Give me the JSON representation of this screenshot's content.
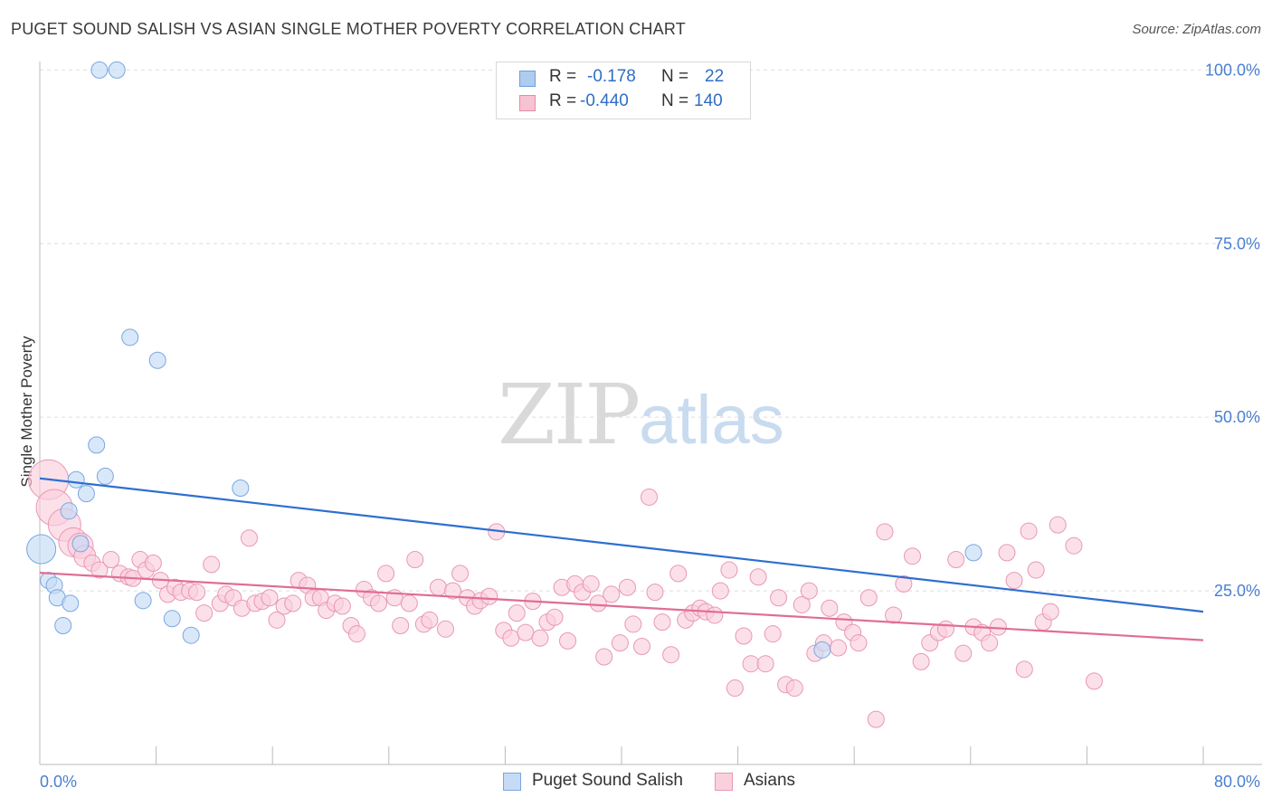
{
  "title": "PUGET SOUND SALISH VS ASIAN SINGLE MOTHER POVERTY CORRELATION CHART",
  "source": "Source: ZipAtlas.com",
  "watermark": {
    "zip": "ZIP",
    "atlas": "atlas"
  },
  "stats": [
    {
      "r_label": "R =",
      "r_value": "-0.178",
      "n_label": "N =",
      "n_value": "22",
      "color": "#aecbf0",
      "border": "#6e9fdc"
    },
    {
      "r_label": "R =",
      "r_value": "-0.440",
      "n_label": "N =",
      "n_value": "140",
      "color": "#f7c3d3",
      "border": "#e88aa8"
    }
  ],
  "legend": [
    {
      "label": "Puget Sound Salish",
      "color": "#c5dbf6",
      "border": "#7aa6e0"
    },
    {
      "label": "Asians",
      "color": "#fad0dd",
      "border": "#e898b2"
    }
  ],
  "chart_data": {
    "type": "scatter",
    "title": "PUGET SOUND SALISH VS ASIAN SINGLE MOTHER POVERTY CORRELATION CHART",
    "xlabel": "",
    "ylabel": "Single Mother Poverty",
    "xlim": [
      0,
      80
    ],
    "ylim": [
      0,
      102
    ],
    "x_tick_labels": [
      "0.0%",
      "80.0%"
    ],
    "y_ticks": [
      25,
      50,
      75,
      100
    ],
    "y_tick_labels": [
      "25.0%",
      "50.0%",
      "75.0%",
      "100.0%"
    ],
    "grid": true,
    "series": [
      {
        "name": "Puget Sound Salish",
        "color": "#7aa6e0",
        "fill": "#c5dbf6",
        "trend_color": "#2e6fd0",
        "trend": [
          [
            0,
            41.2
          ],
          [
            80,
            22.0
          ]
        ],
        "points": [
          [
            4.1,
            100
          ],
          [
            5.3,
            100
          ],
          [
            6.2,
            61.5
          ],
          [
            8.1,
            58.2
          ],
          [
            3.9,
            46.0
          ],
          [
            2.5,
            41.0
          ],
          [
            4.5,
            41.5
          ],
          [
            3.2,
            39.0
          ],
          [
            13.8,
            39.8
          ],
          [
            2.0,
            36.5
          ],
          [
            0.1,
            31.0
          ],
          [
            2.8,
            31.8
          ],
          [
            0.6,
            26.5
          ],
          [
            1.0,
            25.8
          ],
          [
            1.2,
            24.0
          ],
          [
            2.1,
            23.2
          ],
          [
            7.1,
            23.6
          ],
          [
            1.6,
            20.0
          ],
          [
            9.1,
            21.0
          ],
          [
            10.4,
            18.6
          ],
          [
            53.8,
            16.5
          ],
          [
            64.2,
            30.5
          ]
        ],
        "sizes": [
          9,
          9,
          9,
          9,
          9,
          9,
          9,
          9,
          9,
          9,
          16,
          9,
          9,
          9,
          9,
          9,
          9,
          9,
          9,
          9,
          9,
          9
        ]
      },
      {
        "name": "Asians",
        "color": "#e898b2",
        "fill": "#fad0dd",
        "trend_color": "#e06d96",
        "trend": [
          [
            0,
            27.6
          ],
          [
            80,
            17.9
          ]
        ],
        "points": [
          [
            0.6,
            41.0
          ],
          [
            1.0,
            37.0
          ],
          [
            1.7,
            34.5
          ],
          [
            2.3,
            32.0
          ],
          [
            2.8,
            31.5
          ],
          [
            3.1,
            30.0
          ],
          [
            3.6,
            29.0
          ],
          [
            4.1,
            28.0
          ],
          [
            4.9,
            29.5
          ],
          [
            5.5,
            27.5
          ],
          [
            6.1,
            27.0
          ],
          [
            6.4,
            26.8
          ],
          [
            6.9,
            29.5
          ],
          [
            7.3,
            28.0
          ],
          [
            7.8,
            29.0
          ],
          [
            8.3,
            26.5
          ],
          [
            8.8,
            24.5
          ],
          [
            9.3,
            25.5
          ],
          [
            9.7,
            24.8
          ],
          [
            10.3,
            25.0
          ],
          [
            10.8,
            24.8
          ],
          [
            11.3,
            21.8
          ],
          [
            11.8,
            28.8
          ],
          [
            12.4,
            23.2
          ],
          [
            12.8,
            24.5
          ],
          [
            13.3,
            24.0
          ],
          [
            13.9,
            22.5
          ],
          [
            14.4,
            32.6
          ],
          [
            14.8,
            23.2
          ],
          [
            15.3,
            23.5
          ],
          [
            15.8,
            24.0
          ],
          [
            16.3,
            20.8
          ],
          [
            16.8,
            22.8
          ],
          [
            17.4,
            23.2
          ],
          [
            17.8,
            26.5
          ],
          [
            18.4,
            25.8
          ],
          [
            18.8,
            24.0
          ],
          [
            19.3,
            24.0
          ],
          [
            19.7,
            22.2
          ],
          [
            20.3,
            23.2
          ],
          [
            20.8,
            22.8
          ],
          [
            21.4,
            20.0
          ],
          [
            21.8,
            18.8
          ],
          [
            22.3,
            25.2
          ],
          [
            22.8,
            24.0
          ],
          [
            23.3,
            23.2
          ],
          [
            23.8,
            27.5
          ],
          [
            24.4,
            24.0
          ],
          [
            24.8,
            20.0
          ],
          [
            25.4,
            23.2
          ],
          [
            25.8,
            29.5
          ],
          [
            26.4,
            20.2
          ],
          [
            26.8,
            20.8
          ],
          [
            27.4,
            25.5
          ],
          [
            27.9,
            19.5
          ],
          [
            28.4,
            25.0
          ],
          [
            28.9,
            27.5
          ],
          [
            29.4,
            24.0
          ],
          [
            29.9,
            22.8
          ],
          [
            30.3,
            23.6
          ],
          [
            30.9,
            24.2
          ],
          [
            31.4,
            33.5
          ],
          [
            31.9,
            19.3
          ],
          [
            32.4,
            18.2
          ],
          [
            32.8,
            21.8
          ],
          [
            33.4,
            19.0
          ],
          [
            33.9,
            23.5
          ],
          [
            34.4,
            18.2
          ],
          [
            34.9,
            20.5
          ],
          [
            35.4,
            21.2
          ],
          [
            35.9,
            25.5
          ],
          [
            36.3,
            17.8
          ],
          [
            36.8,
            26.0
          ],
          [
            37.3,
            24.8
          ],
          [
            37.9,
            26.0
          ],
          [
            38.4,
            23.2
          ],
          [
            38.8,
            15.5
          ],
          [
            39.3,
            24.5
          ],
          [
            39.9,
            17.5
          ],
          [
            40.4,
            25.5
          ],
          [
            40.8,
            20.2
          ],
          [
            41.4,
            17.0
          ],
          [
            41.9,
            38.5
          ],
          [
            42.3,
            24.8
          ],
          [
            42.8,
            20.5
          ],
          [
            43.4,
            15.8
          ],
          [
            43.9,
            27.5
          ],
          [
            44.4,
            20.8
          ],
          [
            44.9,
            21.8
          ],
          [
            45.4,
            22.5
          ],
          [
            45.8,
            22.0
          ],
          [
            46.4,
            21.5
          ],
          [
            46.8,
            25.0
          ],
          [
            47.4,
            28.0
          ],
          [
            47.8,
            11.0
          ],
          [
            48.4,
            18.5
          ],
          [
            48.9,
            14.5
          ],
          [
            49.4,
            27.0
          ],
          [
            49.9,
            14.5
          ],
          [
            50.4,
            18.8
          ],
          [
            50.8,
            24.0
          ],
          [
            51.3,
            11.5
          ],
          [
            51.9,
            11.0
          ],
          [
            52.4,
            23.0
          ],
          [
            52.9,
            25.0
          ],
          [
            53.3,
            16.0
          ],
          [
            53.9,
            17.5
          ],
          [
            54.3,
            22.5
          ],
          [
            54.9,
            16.8
          ],
          [
            55.3,
            20.5
          ],
          [
            55.9,
            19.0
          ],
          [
            56.3,
            17.5
          ],
          [
            57.0,
            24.0
          ],
          [
            57.5,
            6.5
          ],
          [
            58.1,
            33.5
          ],
          [
            58.7,
            21.5
          ],
          [
            59.4,
            26.0
          ],
          [
            60.0,
            30.0
          ],
          [
            60.6,
            14.8
          ],
          [
            61.2,
            17.5
          ],
          [
            61.8,
            19.0
          ],
          [
            62.3,
            19.5
          ],
          [
            63.0,
            29.5
          ],
          [
            63.5,
            16.0
          ],
          [
            64.2,
            19.8
          ],
          [
            64.8,
            19.0
          ],
          [
            65.3,
            17.5
          ],
          [
            65.9,
            19.8
          ],
          [
            66.5,
            30.5
          ],
          [
            67.0,
            26.5
          ],
          [
            67.7,
            13.7
          ],
          [
            68.0,
            33.6
          ],
          [
            68.5,
            28.0
          ],
          [
            69.0,
            20.5
          ],
          [
            69.5,
            22.0
          ],
          [
            70.0,
            34.5
          ],
          [
            71.1,
            31.5
          ],
          [
            72.5,
            12.0
          ]
        ],
        "large_points": [
          0,
          1,
          2,
          3,
          4,
          5
        ]
      }
    ]
  }
}
